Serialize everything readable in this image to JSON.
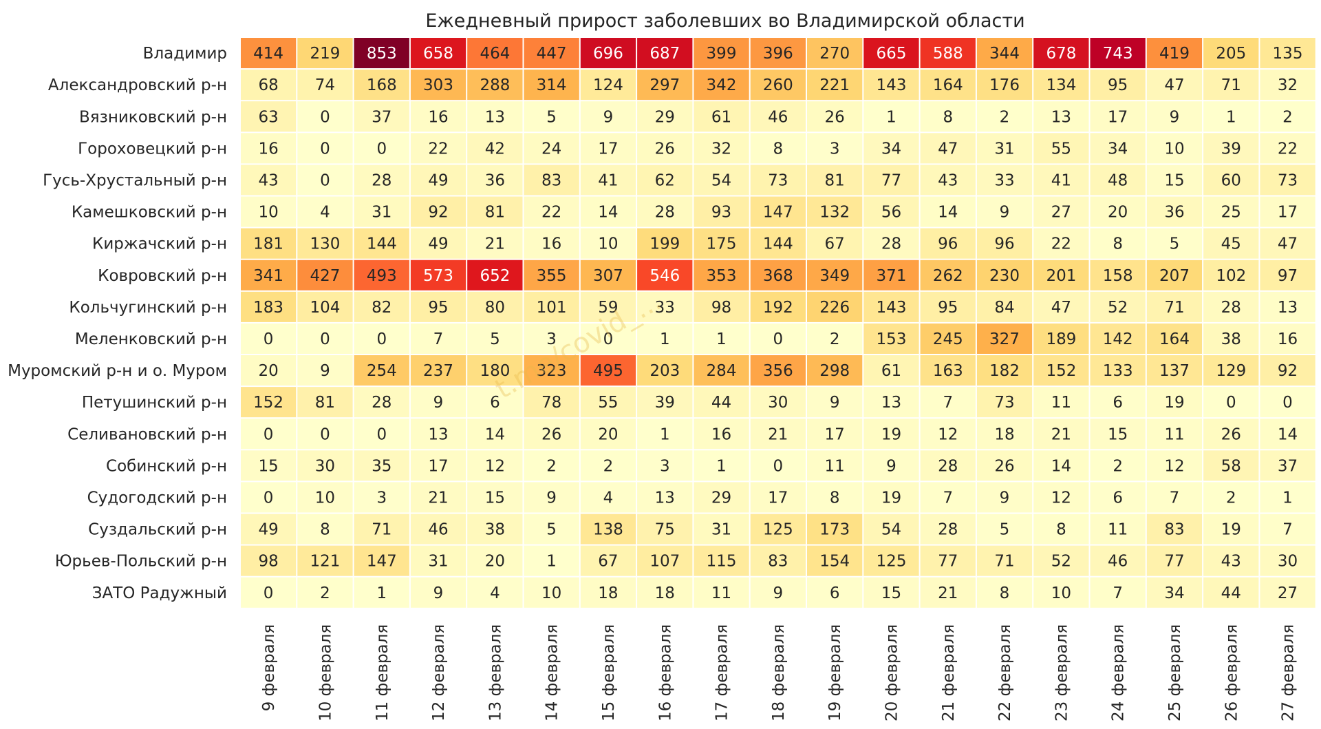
{
  "chart_data": {
    "type": "heatmap",
    "title": "Ежедневный прирост заболевших во Владимирской области",
    "watermark": "t.me/covid_...",
    "colormap": "YlOrRd",
    "legend": "none",
    "grid": false,
    "columns": [
      "9 февраля",
      "10 февраля",
      "11 февраля",
      "12 февраля",
      "13 февраля",
      "14 февраля",
      "15 февраля",
      "16 февраля",
      "17 февраля",
      "18 февраля",
      "19 февраля",
      "20 февраля",
      "21 февраля",
      "22 февраля",
      "23 февраля",
      "24 февраля",
      "25 февраля",
      "26 февраля",
      "27 февраля"
    ],
    "rows": [
      "Владимир",
      "Александровский р-н",
      "Вязниковский р-н",
      "Гороховецкий р-н",
      "Гусь-Хрустальный р-н",
      "Камешковский р-н",
      "Киржачский р-н",
      "Ковровский р-н",
      "Кольчугинский р-н",
      "Меленковский р-н",
      "Муромский р-н и о. Муром",
      "Петушинский р-н",
      "Селивановский р-н",
      "Собинский р-н",
      "Судогодский р-н",
      "Суздальский р-н",
      "Юрьев-Польский р-н",
      "ЗАТО Радужный"
    ],
    "values": [
      [
        414,
        219,
        853,
        658,
        464,
        447,
        696,
        687,
        399,
        396,
        270,
        665,
        588,
        344,
        678,
        743,
        419,
        205,
        135
      ],
      [
        68,
        74,
        168,
        303,
        288,
        314,
        124,
        297,
        342,
        260,
        221,
        143,
        164,
        176,
        134,
        95,
        47,
        71,
        32
      ],
      [
        63,
        0,
        37,
        16,
        13,
        5,
        9,
        29,
        61,
        46,
        26,
        1,
        8,
        2,
        13,
        17,
        9,
        1,
        2
      ],
      [
        16,
        0,
        0,
        22,
        42,
        24,
        17,
        26,
        32,
        8,
        3,
        34,
        47,
        31,
        55,
        34,
        10,
        39,
        22
      ],
      [
        43,
        0,
        28,
        49,
        36,
        83,
        41,
        62,
        54,
        73,
        81,
        77,
        43,
        33,
        41,
        48,
        15,
        60,
        73
      ],
      [
        10,
        4,
        31,
        92,
        81,
        22,
        14,
        28,
        93,
        147,
        132,
        56,
        14,
        9,
        27,
        20,
        36,
        25,
        17
      ],
      [
        181,
        130,
        144,
        49,
        21,
        16,
        10,
        199,
        175,
        144,
        67,
        28,
        96,
        96,
        22,
        8,
        5,
        45,
        47
      ],
      [
        341,
        427,
        493,
        573,
        652,
        355,
        307,
        546,
        353,
        368,
        349,
        371,
        262,
        230,
        201,
        158,
        207,
        102,
        97
      ],
      [
        183,
        104,
        82,
        95,
        80,
        101,
        59,
        33,
        98,
        192,
        226,
        143,
        95,
        84,
        47,
        52,
        71,
        28,
        13
      ],
      [
        0,
        0,
        0,
        7,
        5,
        3,
        0,
        1,
        1,
        0,
        2,
        153,
        245,
        327,
        189,
        142,
        164,
        38,
        16
      ],
      [
        20,
        9,
        254,
        237,
        180,
        323,
        495,
        203,
        284,
        356,
        298,
        61,
        163,
        182,
        152,
        133,
        137,
        129,
        92
      ],
      [
        152,
        81,
        28,
        9,
        6,
        78,
        55,
        39,
        44,
        30,
        9,
        13,
        7,
        73,
        11,
        6,
        19,
        0,
        0
      ],
      [
        0,
        0,
        0,
        13,
        14,
        26,
        20,
        1,
        16,
        21,
        17,
        19,
        12,
        18,
        21,
        15,
        11,
        26,
        14
      ],
      [
        15,
        30,
        35,
        17,
        12,
        2,
        2,
        3,
        1,
        0,
        11,
        9,
        28,
        26,
        14,
        2,
        12,
        58,
        37
      ],
      [
        0,
        10,
        3,
        21,
        15,
        9,
        4,
        13,
        29,
        17,
        8,
        19,
        7,
        9,
        12,
        6,
        7,
        2,
        1
      ],
      [
        49,
        8,
        71,
        46,
        38,
        5,
        138,
        75,
        31,
        125,
        173,
        54,
        28,
        5,
        8,
        11,
        83,
        19,
        7
      ],
      [
        98,
        121,
        147,
        31,
        20,
        1,
        67,
        107,
        115,
        83,
        154,
        125,
        77,
        71,
        52,
        46,
        77,
        43,
        30
      ],
      [
        0,
        2,
        1,
        9,
        4,
        10,
        18,
        18,
        11,
        9,
        6,
        15,
        21,
        8,
        10,
        7,
        34,
        44,
        27
      ]
    ]
  }
}
